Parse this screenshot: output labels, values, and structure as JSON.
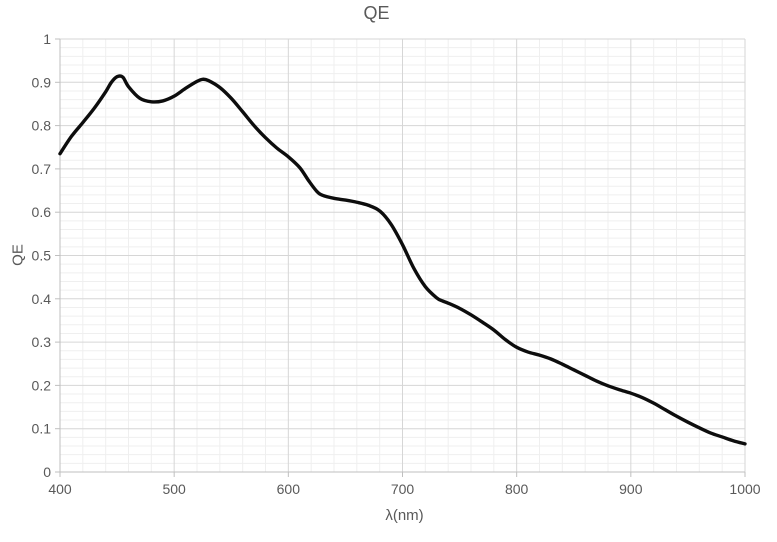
{
  "chart_data": {
    "type": "line",
    "title": "QE",
    "xlabel": "λ(nm)",
    "ylabel": "QE",
    "xlim": [
      400,
      1000
    ],
    "ylim": [
      0,
      1
    ],
    "x_major_ticks": [
      400,
      500,
      600,
      700,
      800,
      900,
      1000
    ],
    "x_tick_labels": [
      "400",
      "500",
      "600",
      "700",
      "800",
      "900",
      "1000"
    ],
    "y_major_ticks": [
      0,
      0.1,
      0.2,
      0.3,
      0.4,
      0.5,
      0.6,
      0.7,
      0.8,
      0.9,
      1
    ],
    "y_tick_labels": [
      "0",
      "0.1",
      "0.2",
      "0.3",
      "0.4",
      "0.5",
      "0.6",
      "0.7",
      "0.8",
      "0.9",
      "1"
    ],
    "x_minor_step": 20,
    "y_minor_step": 0.02,
    "grid": {
      "major": true,
      "minor": true
    },
    "legend": "none",
    "series": [
      {
        "name": "QE",
        "x": [
          400,
          410,
          420,
          430,
          440,
          445,
          450,
          455,
          460,
          470,
          480,
          490,
          500,
          510,
          520,
          525,
          530,
          540,
          550,
          560,
          570,
          580,
          590,
          600,
          610,
          618,
          625,
          630,
          640,
          650,
          660,
          670,
          680,
          690,
          700,
          710,
          720,
          730,
          735,
          740,
          750,
          760,
          770,
          780,
          790,
          800,
          810,
          820,
          830,
          840,
          850,
          860,
          870,
          880,
          890,
          900,
          910,
          920,
          930,
          940,
          950,
          960,
          970,
          980,
          990,
          1000
        ],
        "y": [
          0.735,
          0.775,
          0.807,
          0.84,
          0.878,
          0.9,
          0.913,
          0.912,
          0.89,
          0.863,
          0.855,
          0.857,
          0.868,
          0.886,
          0.902,
          0.907,
          0.904,
          0.888,
          0.863,
          0.832,
          0.8,
          0.772,
          0.748,
          0.728,
          0.703,
          0.672,
          0.648,
          0.639,
          0.632,
          0.628,
          0.623,
          0.616,
          0.603,
          0.572,
          0.525,
          0.47,
          0.428,
          0.402,
          0.395,
          0.39,
          0.378,
          0.363,
          0.346,
          0.328,
          0.306,
          0.288,
          0.277,
          0.27,
          0.261,
          0.249,
          0.236,
          0.223,
          0.21,
          0.199,
          0.19,
          0.182,
          0.172,
          0.159,
          0.144,
          0.129,
          0.115,
          0.102,
          0.09,
          0.081,
          0.072,
          0.065
        ]
      }
    ],
    "colors": {
      "line": "#0d0d0d",
      "grid_major": "#d6d6d6",
      "grid_minor": "#efefef",
      "axis": "#bfbfbf",
      "text": "#595959",
      "background": "#ffffff"
    }
  }
}
